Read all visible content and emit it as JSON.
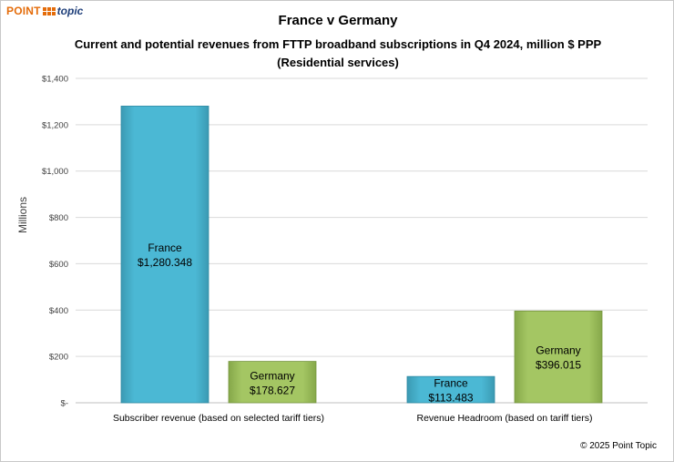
{
  "logo": {
    "text1": "POINT",
    "text2": "topic"
  },
  "copyright": "© 2025 Point Topic",
  "chart_data": {
    "type": "bar",
    "title": "France v Germany",
    "subtitle_line1": "Current and potential revenues from FTTP broadband subscriptions in Q4 2024, million $ PPP",
    "subtitle_line2": "(Residential services)",
    "ylabel": "Millions",
    "xlabel": "",
    "ylim": [
      0,
      1400
    ],
    "ytick_values": [
      0,
      200,
      400,
      600,
      800,
      1000,
      1200,
      1400
    ],
    "ytick_labels": [
      "$-",
      "$200",
      "$400",
      "$600",
      "$800",
      "$1,000",
      "$1,200",
      "$1,400"
    ],
    "grid": true,
    "categories": [
      "Subscriber revenue (based on selected tariff tiers)",
      "Revenue Headroom (based on tariff tiers)"
    ],
    "series": [
      {
        "name": "France",
        "values": [
          1280.348,
          113.483
        ],
        "labels": [
          "$1,280.348",
          "$113.483"
        ],
        "color": "#4bacc6"
      },
      {
        "name": "Germany",
        "values": [
          178.627,
          396.015
        ],
        "labels": [
          "$178.627",
          "$396.015"
        ],
        "color": "#9bbb59"
      }
    ]
  }
}
